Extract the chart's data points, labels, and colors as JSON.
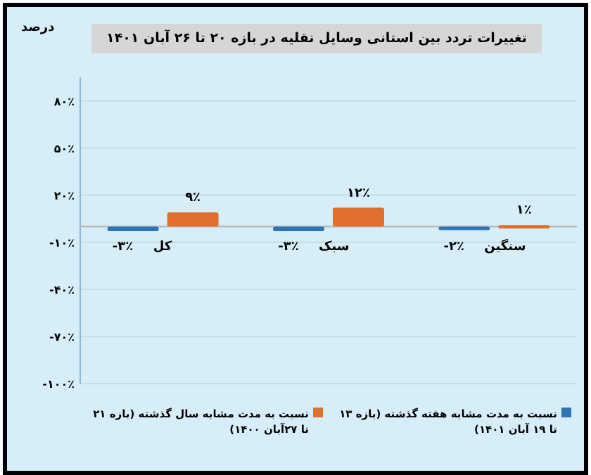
{
  "chart_data": {
    "type": "bar",
    "title": "تغییرات تردد بین استانی وسایل نقلیه در بازه ۲۰ تا ۲۶ آبان ۱۴۰۱",
    "ylabel": "درصد",
    "categories": [
      "کل",
      "سبک",
      "سنگین"
    ],
    "series": [
      {
        "name": "نسبت به مدت مشابه هفته گذشته (بازه ۱۳ تا ۱۹ آبان ۱۴۰۱)",
        "color": "#2e75b6",
        "values": [
          -3,
          -3,
          -2
        ],
        "value_labels": [
          "-۳٪",
          "-۳٪",
          "-۲٪"
        ]
      },
      {
        "name": "نسبت به مدت مشابه سال گذشته (بازه ۲۱ تا ۲۷آبان ۱۴۰۰)",
        "color": "#e0702e",
        "values": [
          9,
          12,
          1
        ],
        "value_labels": [
          "۹٪",
          "۱۲٪",
          "۱٪"
        ]
      }
    ],
    "ylim": [
      -100,
      95
    ],
    "yticks": [
      {
        "value": 80,
        "label": "۸۰٪"
      },
      {
        "value": 50,
        "label": "۵۰٪"
      },
      {
        "value": 20,
        "label": "۲۰٪"
      },
      {
        "value": -10,
        "label": "-۱۰٪"
      },
      {
        "value": -40,
        "label": "-۴۰٪"
      },
      {
        "value": -70,
        "label": "-۷۰٪"
      },
      {
        "value": -100,
        "label": "-۱۰۰٪"
      }
    ],
    "grid": "y",
    "legend": "bottom"
  }
}
